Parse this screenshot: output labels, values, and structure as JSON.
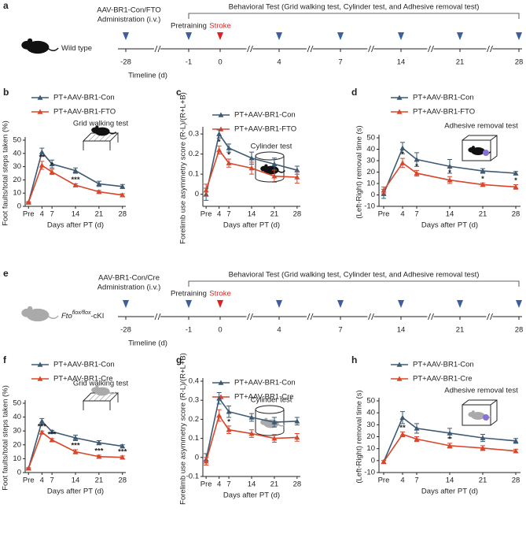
{
  "timelines": [
    {
      "panel": "a",
      "header": "Behavioral Test (Grid walking test, Cylinder test, and Adhesive removal test)",
      "admin": [
        "AAV-BR1-Con/FTO",
        "Administration (i.v.)"
      ],
      "pretraining": "Pretraining",
      "stroke": "Stroke",
      "group": "Wild type",
      "axis_label": "Timeline (d)",
      "ticks": [
        -28,
        -1,
        0,
        4,
        7,
        14,
        21,
        28
      ],
      "arrow_color": "#3b5fa0",
      "stroke_color": "#e02020",
      "mouse_color": "#111111"
    },
    {
      "panel": "e",
      "header": "Behavioral Test (Grid walking test, Cylinder test, and Adhesive removal test)",
      "admin": [
        "AAV-BR1-Con/Cre",
        "Administration (i.v.)"
      ],
      "pretraining": "Pretraining",
      "stroke": "Stroke",
      "group": "Fto",
      "group_sup": "flox/flox",
      "group_suffix": "-cKI",
      "axis_label": "Timeline (d)",
      "ticks": [
        -28,
        -1,
        0,
        4,
        7,
        14,
        21,
        28
      ],
      "arrow_color": "#3b5fa0",
      "stroke_color": "#e02020",
      "mouse_color": "#aaaaaa"
    }
  ],
  "chart_data": [
    {
      "type": "line",
      "panel": "b",
      "title": "Grid walking test",
      "xlabel": "Days after PT (d)",
      "ylabel": "Foot faults/total steps taken (%)",
      "x": [
        0,
        4,
        7,
        14,
        21,
        28
      ],
      "xlim": [
        -1,
        29
      ],
      "xticks": [
        {
          "value": 0,
          "label": "Pre"
        },
        4,
        7,
        14,
        21,
        28
      ],
      "ylim": [
        0,
        50
      ],
      "yticks": [
        0,
        10,
        20,
        30,
        40,
        50
      ],
      "series": [
        {
          "name": "PT+AAV-BR1-Con",
          "color": "#3d5a73",
          "values": [
            3,
            41,
            32,
            27,
            17,
            15
          ],
          "errors": [
            0.5,
            3,
            3,
            2,
            2,
            1.5
          ]
        },
        {
          "name": "PT+AAV-BR1-FTO",
          "color": "#d9462b",
          "values": [
            3,
            31,
            26,
            16,
            11,
            8.5
          ],
          "errors": [
            0.5,
            3,
            2,
            1,
            1,
            1
          ]
        }
      ],
      "annotations": [
        {
          "x": 4,
          "label": "**"
        },
        {
          "x": 7,
          "label": "*"
        },
        {
          "x": 14,
          "label": "***"
        }
      ]
    },
    {
      "type": "line",
      "panel": "c",
      "title": "Cylinder test",
      "xlabel": "Days after PT (d)",
      "ylabel": "Forelimb use asymmetry score (R-L)/(R+L+B)",
      "x": [
        0,
        4,
        7,
        14,
        21,
        28
      ],
      "xlim": [
        -1,
        29
      ],
      "xticks": [
        {
          "value": 0,
          "label": "Pre"
        },
        4,
        7,
        14,
        21,
        28
      ],
      "ylim": [
        -0.06,
        0.32
      ],
      "yticks": [
        0,
        0.1,
        0.2,
        0.3
      ],
      "series": [
        {
          "name": "PT+AAV-BR1-Con",
          "color": "#3d5a73",
          "values": [
            0,
            0.3,
            0.23,
            0.18,
            0.15,
            0.12
          ],
          "errors": [
            0.03,
            0.02,
            0.02,
            0.03,
            0.03,
            0.02
          ]
        },
        {
          "name": "PT+AAV-BR1-FTO",
          "color": "#d9462b",
          "values": [
            0.02,
            0.22,
            0.155,
            0.13,
            0.09,
            0.085
          ],
          "errors": [
            0.03,
            0.02,
            0.02,
            0.03,
            0.03,
            0.03
          ]
        }
      ],
      "annotations": [
        {
          "x": 4,
          "label": "*"
        },
        {
          "x": 7,
          "label": "*"
        }
      ]
    },
    {
      "type": "line",
      "panel": "d",
      "title": "Adhesive removal test",
      "xlabel": "Days after PT (d)",
      "ylabel": "(Left-Right) removal time (s)",
      "x": [
        0,
        4,
        7,
        14,
        21,
        28
      ],
      "xlim": [
        -1,
        29
      ],
      "xticks": [
        {
          "value": 0,
          "label": "Pre"
        },
        4,
        7,
        14,
        21,
        28
      ],
      "ylim": [
        -10,
        50
      ],
      "yticks": [
        -10,
        0,
        10,
        20,
        30,
        40,
        50
      ],
      "series": [
        {
          "name": "PT+AAV-BR1-Con",
          "color": "#3d5a73",
          "values": [
            1,
            41,
            31,
            25,
            21,
            19
          ],
          "errors": [
            4,
            5,
            6,
            6,
            2,
            1.5
          ]
        },
        {
          "name": "PT+AAV-BR1-FTO",
          "color": "#d9462b",
          "values": [
            4,
            28,
            19,
            13,
            9,
            7
          ],
          "errors": [
            3,
            4,
            2.5,
            3,
            1.5,
            2
          ]
        }
      ],
      "annotations": [
        {
          "x": 4,
          "label": "*"
        },
        {
          "x": 7,
          "label": "*"
        },
        {
          "x": 14,
          "label": "*"
        },
        {
          "x": 21,
          "label": "*"
        },
        {
          "x": 28,
          "label": "*"
        }
      ]
    },
    {
      "type": "line",
      "panel": "f",
      "title": "Grid walking test",
      "xlabel": "Days after PT (d)",
      "ylabel": "Foot faults/total steps taken (%)",
      "x": [
        0,
        4,
        7,
        14,
        21,
        28
      ],
      "xlim": [
        -1,
        29
      ],
      "xticks": [
        {
          "value": 0,
          "label": "Pre"
        },
        4,
        7,
        14,
        21,
        28
      ],
      "ylim": [
        0,
        50
      ],
      "yticks": [
        0,
        10,
        20,
        30,
        40,
        50
      ],
      "series": [
        {
          "name": "PT+AAV-BR1-Con",
          "color": "#3d5a73",
          "values": [
            3,
            37,
            29.5,
            25,
            21.5,
            19
          ],
          "errors": [
            0.5,
            2,
            1,
            2,
            1.5,
            1
          ]
        },
        {
          "name": "PT+AAV-BR1-Cre",
          "color": "#d9462b",
          "values": [
            3,
            29,
            23.5,
            15,
            11.5,
            11
          ],
          "errors": [
            0.5,
            1,
            1,
            1.5,
            1,
            1
          ]
        }
      ],
      "annotations": [
        {
          "x": 4,
          "label": "***"
        },
        {
          "x": 7,
          "label": "***"
        },
        {
          "x": 14,
          "label": "***"
        },
        {
          "x": 21,
          "label": "***"
        },
        {
          "x": 28,
          "label": "***"
        }
      ]
    },
    {
      "type": "line",
      "panel": "g",
      "title": "Cylinder test",
      "xlabel": "Days after PT (d)",
      "ylabel": "Forelimb use asymmetry score (R-L)/(R+L+B)",
      "x": [
        0,
        4,
        7,
        14,
        21,
        28
      ],
      "xlim": [
        -1,
        29
      ],
      "xticks": [
        {
          "value": 0,
          "label": "Pre"
        },
        4,
        7,
        14,
        21,
        28
      ],
      "ylim": [
        -0.1,
        0.4
      ],
      "yticks": [
        -0.1,
        0,
        0.1,
        0.2,
        0.3,
        0.4
      ],
      "series": [
        {
          "name": "PT+AAV-BR1-Con",
          "color": "#3d5a73",
          "values": [
            -0.01,
            0.31,
            0.24,
            0.21,
            0.185,
            0.19
          ],
          "errors": [
            0.03,
            0.03,
            0.03,
            0.02,
            0.025,
            0.02
          ]
        },
        {
          "name": "PT+AAV-BR1-Cre",
          "color": "#d9462b",
          "values": [
            -0.02,
            0.22,
            0.145,
            0.125,
            0.1,
            0.105
          ],
          "errors": [
            0.02,
            0.03,
            0.02,
            0.02,
            0.02,
            0.02
          ]
        }
      ],
      "annotations": [
        {
          "x": 7,
          "label": "*"
        }
      ]
    },
    {
      "type": "line",
      "panel": "h",
      "title": "Adhesive removal test",
      "xlabel": "Days after PT (d)",
      "ylabel": "(Left-Right) removal time (s)",
      "x": [
        0,
        4,
        7,
        14,
        21,
        28
      ],
      "xlim": [
        -1,
        29
      ],
      "xticks": [
        {
          "value": 0,
          "label": "Pre"
        },
        4,
        7,
        14,
        21,
        28
      ],
      "ylim": [
        -10,
        50
      ],
      "yticks": [
        -10,
        0,
        10,
        20,
        30,
        40,
        50
      ],
      "series": [
        {
          "name": "PT+AAV-BR1-Con",
          "color": "#3d5a73",
          "values": [
            -1,
            36,
            27,
            23,
            19,
            16.5
          ],
          "errors": [
            1,
            5,
            4,
            4,
            3,
            2
          ]
        },
        {
          "name": "PT+AAV-BR1-Cre",
          "color": "#d9462b",
          "values": [
            -1,
            22,
            18,
            12.5,
            10.5,
            8
          ],
          "errors": [
            1,
            2,
            2,
            2,
            2,
            1.5
          ]
        }
      ],
      "annotations": [
        {
          "x": 4,
          "label": "**"
        },
        {
          "x": 14,
          "label": "*"
        }
      ]
    }
  ]
}
